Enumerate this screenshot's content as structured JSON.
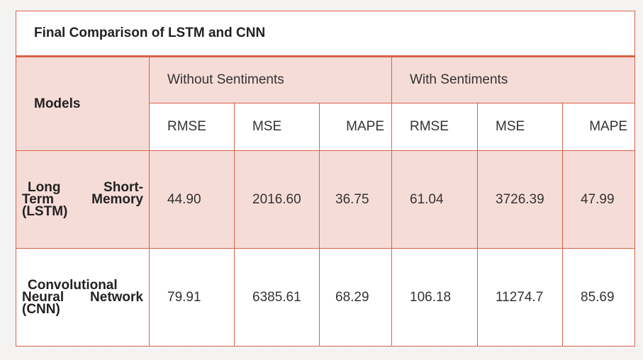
{
  "title": "Final Comparison of LSTM and CNN",
  "header": {
    "models_label": "Models",
    "group_without": "Without Sentiments",
    "group_with": "With Sentiments",
    "metrics": [
      "RMSE",
      "MSE",
      "MAPE",
      "RMSE",
      "MSE",
      "MAPE"
    ]
  },
  "rows": [
    {
      "model_line1": "Long Short-",
      "model_line2": "Term Memory",
      "model_line3": "(LSTM)",
      "values": [
        "44.90",
        "2016.60",
        "36.75",
        "61.04",
        "3726.39",
        "47.99"
      ]
    },
    {
      "model_line1": "Convolutional",
      "model_line2": "Neural Network",
      "model_line3": "(CNN)",
      "values": [
        "79.91",
        "6385.61",
        "68.29",
        "106.18",
        "11274.7",
        "85.69"
      ]
    }
  ]
}
